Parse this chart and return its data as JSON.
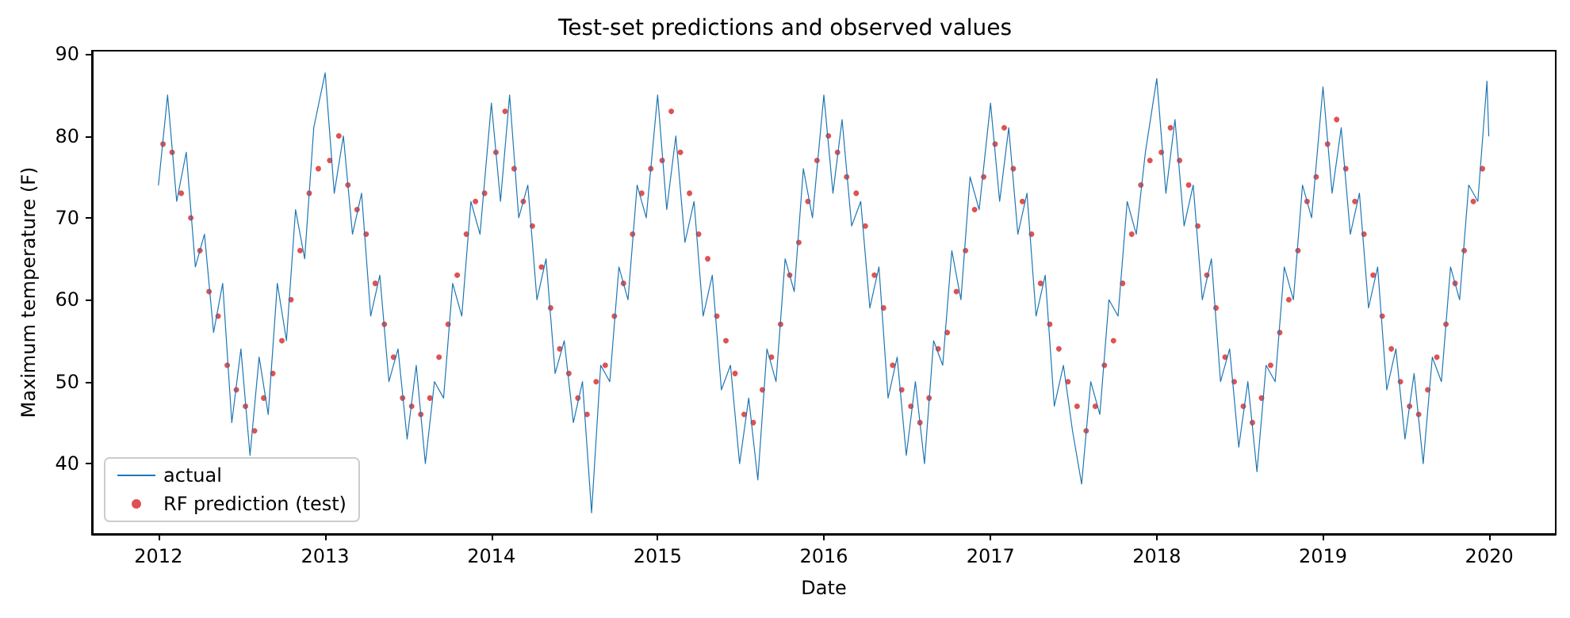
{
  "chart_data": {
    "type": "line",
    "title": "Test-set predictions and observed values",
    "xlabel": "Date",
    "ylabel": "Maximum temperature (F)",
    "xlim": [
      "2011-08-08",
      "2020-05-26"
    ],
    "xticks": [
      "2012",
      "2013",
      "2014",
      "2015",
      "2016",
      "2017",
      "2018",
      "2019",
      "2020"
    ],
    "ylim": [
      31.4,
      90.4
    ],
    "yticks": [
      40,
      50,
      60,
      70,
      80,
      90
    ],
    "grid": false,
    "legend": "bottom left",
    "series": [
      {
        "name": "actual",
        "type": "line",
        "color": "#1f77b4",
        "marker": "none",
        "line_style": "solid",
        "x": [
          "2012-01-01",
          "2012-01-21",
          "2012-02-10",
          "2012-03-02",
          "2012-03-22",
          "2012-04-11",
          "2012-05-01",
          "2012-05-21",
          "2012-06-10",
          "2012-06-30",
          "2012-07-20",
          "2012-08-09",
          "2012-08-29",
          "2012-09-18",
          "2012-10-08",
          "2012-10-28",
          "2012-11-17",
          "2012-12-07",
          "2013-01-01",
          "2013-01-21",
          "2013-02-10",
          "2013-03-02",
          "2013-03-22",
          "2013-04-11",
          "2013-05-01",
          "2013-05-21",
          "2013-06-10",
          "2013-06-30",
          "2013-07-20",
          "2013-08-09",
          "2013-08-29",
          "2013-09-18",
          "2013-10-08",
          "2013-10-28",
          "2013-11-17",
          "2013-12-07",
          "2014-01-01",
          "2014-01-21",
          "2014-02-10",
          "2014-03-02",
          "2014-03-22",
          "2014-04-11",
          "2014-05-01",
          "2014-05-21",
          "2014-06-10",
          "2014-06-30",
          "2014-07-20",
          "2014-08-09",
          "2014-08-29",
          "2014-09-18",
          "2014-10-08",
          "2014-10-28",
          "2014-11-17",
          "2014-12-07",
          "2015-01-01",
          "2015-01-21",
          "2015-02-10",
          "2015-03-02",
          "2015-03-22",
          "2015-04-11",
          "2015-05-01",
          "2015-05-21",
          "2015-06-10",
          "2015-06-30",
          "2015-07-20",
          "2015-08-09",
          "2015-08-29",
          "2015-09-18",
          "2015-10-08",
          "2015-10-28",
          "2015-11-17",
          "2015-12-07",
          "2016-01-01",
          "2016-01-21",
          "2016-02-10",
          "2016-03-02",
          "2016-03-22",
          "2016-04-11",
          "2016-05-01",
          "2016-05-21",
          "2016-06-10",
          "2016-06-30",
          "2016-07-20",
          "2016-08-09",
          "2016-08-29",
          "2016-09-18",
          "2016-10-08",
          "2016-10-28",
          "2016-11-17",
          "2016-12-07",
          "2017-01-01",
          "2017-01-21",
          "2017-02-10",
          "2017-03-02",
          "2017-03-22",
          "2017-04-11",
          "2017-05-01",
          "2017-05-21",
          "2017-06-10",
          "2017-06-30",
          "2017-07-20",
          "2017-08-09",
          "2017-08-29",
          "2017-09-18",
          "2017-10-08",
          "2017-10-28",
          "2017-11-17",
          "2017-12-07",
          "2018-01-01",
          "2018-01-21",
          "2018-02-10",
          "2018-03-02",
          "2018-03-22",
          "2018-04-11",
          "2018-05-01",
          "2018-05-21",
          "2018-06-10",
          "2018-06-30",
          "2018-07-20",
          "2018-08-09",
          "2018-08-29",
          "2018-09-18",
          "2018-10-08",
          "2018-10-28",
          "2018-11-17",
          "2018-12-07",
          "2019-01-01",
          "2019-01-21",
          "2019-02-10",
          "2019-03-02",
          "2019-03-22",
          "2019-04-11",
          "2019-05-01",
          "2019-05-21",
          "2019-06-10",
          "2019-06-30",
          "2019-07-20",
          "2019-08-09",
          "2019-08-29",
          "2019-09-18",
          "2019-10-08",
          "2019-10-28",
          "2019-11-17",
          "2019-12-07",
          "2019-12-27",
          "2019-12-31"
        ],
        "values": [
          74,
          85,
          72,
          78,
          64,
          68,
          56,
          62,
          45,
          54,
          41,
          53,
          46,
          62,
          55,
          71,
          65,
          81,
          87.7,
          73,
          80,
          68,
          73,
          58,
          63,
          50,
          54,
          43,
          52,
          40,
          50,
          48,
          62,
          58,
          72,
          68,
          84,
          72,
          85,
          70,
          74,
          60,
          65,
          51,
          55,
          45,
          50,
          34,
          52,
          50,
          64,
          60,
          74,
          70,
          85,
          71,
          80,
          67,
          72,
          58,
          63,
          49,
          52,
          40,
          48,
          38,
          54,
          50,
          65,
          61,
          76,
          70,
          85,
          73,
          82,
          69,
          72,
          59,
          64,
          48,
          53,
          41,
          50,
          40,
          55,
          52,
          66,
          60,
          75,
          71,
          84,
          72,
          81,
          68,
          73,
          58,
          63,
          47,
          52,
          44,
          37.5,
          50,
          46,
          60,
          58,
          72,
          68,
          78,
          87,
          73,
          82,
          69,
          74,
          60,
          65,
          50,
          54,
          42,
          50,
          39,
          52,
          50,
          64,
          60,
          74,
          70,
          86,
          73,
          81,
          68,
          73,
          59,
          64,
          49,
          54,
          43,
          51,
          40,
          53,
          50,
          64,
          60,
          74,
          72,
          86.7,
          80
        ]
      },
      {
        "name": "RF prediction (test)",
        "type": "scatter",
        "color": "#d62728",
        "marker": "circle",
        "x": [
          "2012-01-11",
          "2012-01-31",
          "2012-02-20",
          "2012-03-12",
          "2012-04-01",
          "2012-04-21",
          "2012-05-11",
          "2012-05-31",
          "2012-06-20",
          "2012-07-10",
          "2012-07-30",
          "2012-08-19",
          "2012-09-08",
          "2012-09-28",
          "2012-10-18",
          "2012-11-07",
          "2012-11-27",
          "2012-12-17",
          "2013-01-11",
          "2013-01-31",
          "2013-02-20",
          "2013-03-12",
          "2013-04-01",
          "2013-04-21",
          "2013-05-11",
          "2013-05-31",
          "2013-06-20",
          "2013-07-10",
          "2013-07-30",
          "2013-08-19",
          "2013-09-08",
          "2013-09-28",
          "2013-10-18",
          "2013-11-07",
          "2013-11-27",
          "2013-12-17",
          "2014-01-11",
          "2014-01-31",
          "2014-02-20",
          "2014-03-12",
          "2014-04-01",
          "2014-04-21",
          "2014-05-11",
          "2014-05-31",
          "2014-06-20",
          "2014-07-10",
          "2014-07-30",
          "2014-08-19",
          "2014-09-08",
          "2014-09-28",
          "2014-10-18",
          "2014-11-07",
          "2014-11-27",
          "2014-12-17",
          "2015-01-11",
          "2015-01-31",
          "2015-02-20",
          "2015-03-12",
          "2015-04-01",
          "2015-04-21",
          "2015-05-11",
          "2015-05-31",
          "2015-06-20",
          "2015-07-10",
          "2015-07-30",
          "2015-08-19",
          "2015-09-08",
          "2015-09-28",
          "2015-10-18",
          "2015-11-07",
          "2015-11-27",
          "2015-12-17",
          "2016-01-11",
          "2016-01-31",
          "2016-02-20",
          "2016-03-12",
          "2016-04-01",
          "2016-04-21",
          "2016-05-11",
          "2016-05-31",
          "2016-06-20",
          "2016-07-10",
          "2016-07-30",
          "2016-08-19",
          "2016-09-08",
          "2016-09-28",
          "2016-10-18",
          "2016-11-07",
          "2016-11-27",
          "2016-12-17",
          "2017-01-11",
          "2017-01-31",
          "2017-02-20",
          "2017-03-12",
          "2017-04-01",
          "2017-04-21",
          "2017-05-11",
          "2017-05-31",
          "2017-06-20",
          "2017-07-10",
          "2017-07-30",
          "2017-08-19",
          "2017-09-08",
          "2017-09-28",
          "2017-10-18",
          "2017-11-07",
          "2017-11-27",
          "2017-12-17",
          "2018-01-11",
          "2018-01-31",
          "2018-02-20",
          "2018-03-12",
          "2018-04-01",
          "2018-04-21",
          "2018-05-11",
          "2018-05-31",
          "2018-06-20",
          "2018-07-10",
          "2018-07-30",
          "2018-08-19",
          "2018-09-08",
          "2018-09-28",
          "2018-10-18",
          "2018-11-07",
          "2018-11-27",
          "2018-12-17",
          "2019-01-11",
          "2019-01-31",
          "2019-02-20",
          "2019-03-12",
          "2019-04-01",
          "2019-04-21",
          "2019-05-11",
          "2019-05-31",
          "2019-06-20",
          "2019-07-10",
          "2019-07-30",
          "2019-08-19",
          "2019-09-08",
          "2019-09-28",
          "2019-10-18",
          "2019-11-07",
          "2019-11-27",
          "2019-12-17"
        ],
        "values": [
          79,
          78,
          73,
          70,
          66,
          61,
          58,
          52,
          49,
          47,
          44,
          48,
          51,
          55,
          60,
          66,
          73,
          76,
          77,
          80,
          74,
          71,
          68,
          62,
          57,
          53,
          48,
          47,
          46,
          48,
          53,
          57,
          63,
          68,
          72,
          73,
          78,
          83,
          76,
          72,
          69,
          64,
          59,
          54,
          51,
          48,
          46,
          50,
          52,
          58,
          62,
          68,
          73,
          76,
          77,
          83,
          78,
          73,
          68,
          65,
          58,
          55,
          51,
          46,
          45,
          49,
          53,
          57,
          63,
          67,
          72,
          77,
          80,
          78,
          75,
          73,
          69,
          63,
          59,
          52,
          49,
          47,
          45,
          48,
          54,
          56,
          61,
          66,
          71,
          75,
          79,
          81,
          76,
          72,
          68,
          62,
          57,
          54,
          50,
          47,
          44,
          47,
          52,
          55,
          62,
          68,
          74,
          77,
          78,
          81,
          77,
          74,
          69,
          63,
          59,
          53,
          50,
          47,
          45,
          48,
          52,
          56,
          60,
          66,
          72,
          75,
          79,
          82,
          76,
          72,
          68,
          63,
          58,
          54,
          50,
          47,
          46,
          49,
          53,
          57,
          62,
          66,
          72,
          76
        ]
      }
    ]
  }
}
